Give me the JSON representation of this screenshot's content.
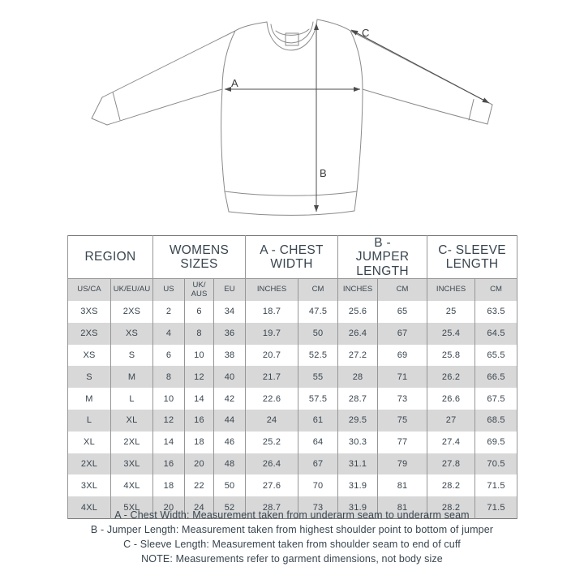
{
  "diagram": {
    "labels": {
      "chest_width": "A",
      "jumper_length": "B",
      "sleeve_length": "C"
    }
  },
  "table": {
    "groups": [
      {
        "label": "REGION"
      },
      {
        "label": "WOMENS SIZES"
      },
      {
        "label": "A - CHEST WIDTH"
      },
      {
        "label": "B - JUMPER LENGTH"
      },
      {
        "label": "C- SLEEVE LENGTH"
      }
    ],
    "columns": [
      "US/CA",
      "UK/EU/AU",
      "US",
      "UK/ AUS",
      "EU",
      "INCHES",
      "CM",
      "INCHES",
      "CM",
      "INCHES",
      "CM"
    ],
    "rows": [
      [
        "3XS",
        "2XS",
        "2",
        "6",
        "34",
        "18.7",
        "47.5",
        "25.6",
        "65",
        "25",
        "63.5"
      ],
      [
        "2XS",
        "XS",
        "4",
        "8",
        "36",
        "19.7",
        "50",
        "26.4",
        "67",
        "25.4",
        "64.5"
      ],
      [
        "XS",
        "S",
        "6",
        "10",
        "38",
        "20.7",
        "52.5",
        "27.2",
        "69",
        "25.8",
        "65.5"
      ],
      [
        "S",
        "M",
        "8",
        "12",
        "40",
        "21.7",
        "55",
        "28",
        "71",
        "26.2",
        "66.5"
      ],
      [
        "M",
        "L",
        "10",
        "14",
        "42",
        "22.6",
        "57.5",
        "28.7",
        "73",
        "26.6",
        "67.5"
      ],
      [
        "L",
        "XL",
        "12",
        "16",
        "44",
        "24",
        "61",
        "29.5",
        "75",
        "27",
        "68.5"
      ],
      [
        "XL",
        "2XL",
        "14",
        "18",
        "46",
        "25.2",
        "64",
        "30.3",
        "77",
        "27.4",
        "69.5"
      ],
      [
        "2XL",
        "3XL",
        "16",
        "20",
        "48",
        "26.4",
        "67",
        "31.1",
        "79",
        "27.8",
        "70.5"
      ],
      [
        "3XL",
        "4XL",
        "18",
        "22",
        "50",
        "27.6",
        "70",
        "31.9",
        "81",
        "28.2",
        "71.5"
      ],
      [
        "4XL",
        "5XL",
        "20",
        "24",
        "52",
        "28.7",
        "73",
        "31.9",
        "81",
        "28.2",
        "71.5"
      ]
    ]
  },
  "notes": [
    "A - Chest Width: Measurement taken from underarm seam to underarm seam",
    "B - Jumper Length: Measurement taken from highest shoulder point to bottom of jumper",
    "C - Sleeve Length: Measurement taken from shoulder seam to end of cuff",
    "NOTE: Measurements refer to garment dimensions, not body size"
  ],
  "colors": {
    "text": "#39454f",
    "row_shade": "#d8d8d8",
    "grid_line": "#969696",
    "garment_line": "#8a8a8a",
    "arrow": "#4c4c4c",
    "background": "#ffffff"
  }
}
